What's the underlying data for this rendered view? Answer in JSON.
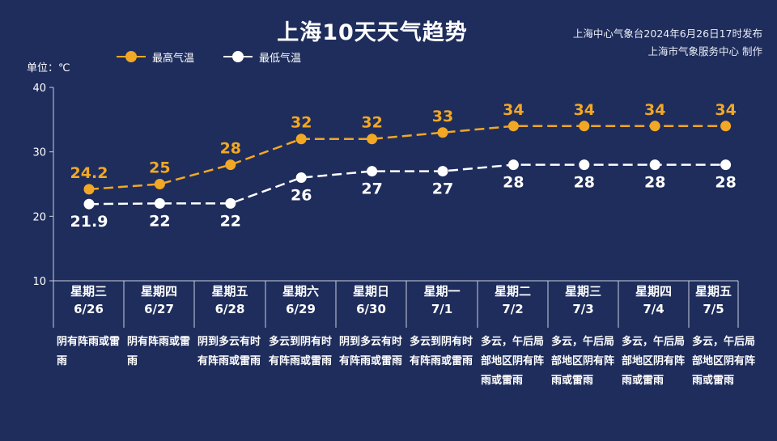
{
  "title": "上海10天天气趋势",
  "source_line1": "上海中心气象台2024年6月26日17时发布",
  "source_line2": "上海市气象服务中心 制作",
  "unit_label": "单位：℃",
  "colors": {
    "background": "#1f2d5c",
    "max_series": "#f2a824",
    "min_series": "#ffffff",
    "axis": "#c8cedf"
  },
  "chart_data": {
    "type": "line",
    "title": "上海10天天气趋势",
    "ylabel": "单位：℃",
    "ylim": [
      10,
      40
    ],
    "yticks": [
      10,
      20,
      30,
      40
    ],
    "grid": false,
    "legend_position": "top-left",
    "categories": [
      "6/26",
      "6/27",
      "6/28",
      "6/29",
      "6/30",
      "7/1",
      "7/2",
      "7/3",
      "7/4",
      "7/5"
    ],
    "weekdays": [
      "星期三",
      "星期四",
      "星期五",
      "星期六",
      "星期日",
      "星期一",
      "星期二",
      "星期三",
      "星期四",
      "星期五"
    ],
    "series": [
      {
        "name": "最高气温",
        "values": [
          24.2,
          25,
          28,
          32,
          32,
          33,
          34,
          34,
          34,
          34
        ],
        "labels": [
          "24.2",
          "25",
          "28",
          "32",
          "32",
          "33",
          "34",
          "34",
          "34",
          "34"
        ],
        "color": "#f2a824",
        "style": "dashed"
      },
      {
        "name": "最低气温",
        "values": [
          21.9,
          22,
          22,
          26,
          27,
          27,
          28,
          28,
          28,
          28
        ],
        "labels": [
          "21.9",
          "22",
          "22",
          "26",
          "27",
          "27",
          "28",
          "28",
          "28",
          "28"
        ],
        "color": "#ffffff",
        "style": "dashed"
      }
    ],
    "weather": [
      "阴有阵雨或雷雨",
      "阴有阵雨或雷雨",
      "阴到多云有时有阵雨或雷雨",
      "多云到阴有时有阵雨或雷雨",
      "阴到多云有时有阵雨或雷雨",
      "多云到阴有时有阵雨或雷雨",
      "多云，午后局部地区阴有阵雨或雷雨",
      "多云，午后局部地区阴有阵雨或雷雨",
      "多云，午后局部地区阴有阵雨或雷雨",
      "多云，午后局部地区阴有阵雨或雷雨"
    ]
  }
}
